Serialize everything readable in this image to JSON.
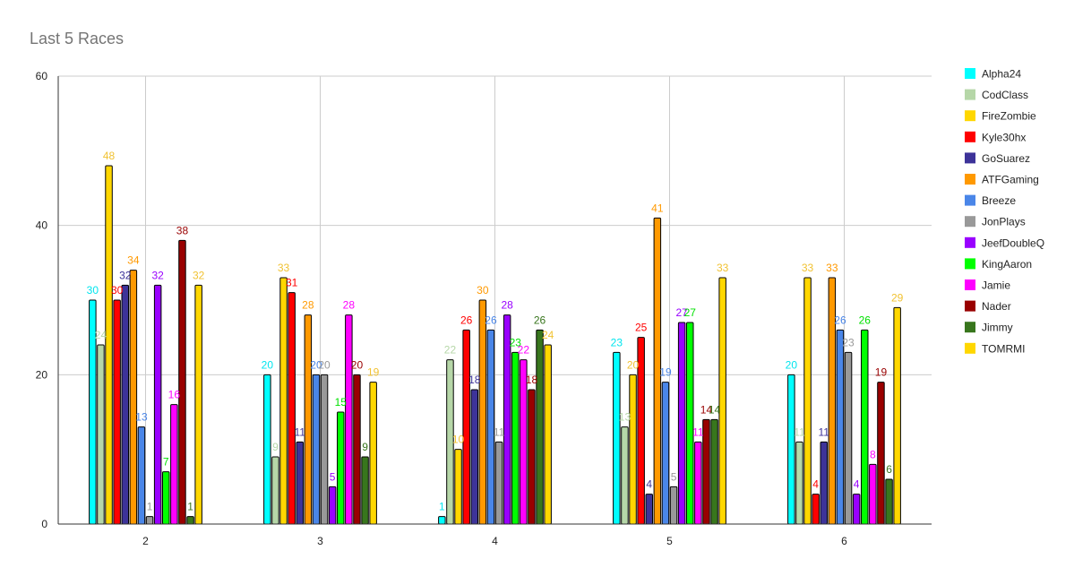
{
  "chart_data": {
    "type": "bar",
    "title": "Last 5 Races",
    "xlabel": "",
    "ylabel": "",
    "categories": [
      "2",
      "3",
      "4",
      "5",
      "6"
    ],
    "ylim": [
      0,
      60
    ],
    "yticks": [
      0,
      20,
      40,
      60
    ],
    "grid": true,
    "legend": "right",
    "series": [
      {
        "name": "Alpha24",
        "color": "#00FFFF",
        "label_color": "#00E5EE",
        "values": [
          30,
          20,
          1,
          23,
          20
        ]
      },
      {
        "name": "CodClass",
        "color": "#B6D7A8",
        "label_color": "#B6D7A8",
        "values": [
          24,
          9,
          22,
          13,
          11
        ]
      },
      {
        "name": "FireZombie",
        "color": "#FFD700",
        "label_color": "#F1C232",
        "values": [
          48,
          33,
          10,
          20,
          33
        ]
      },
      {
        "name": "Kyle30hx",
        "color": "#FF0000",
        "label_color": "#FF0000",
        "values": [
          30,
          31,
          26,
          25,
          4
        ]
      },
      {
        "name": "GoSuarez",
        "color": "#3D3399",
        "label_color": "#3D3399",
        "values": [
          32,
          11,
          18,
          4,
          11
        ]
      },
      {
        "name": "ATFGaming",
        "color": "#FF9900",
        "label_color": "#FF9900",
        "values": [
          34,
          28,
          30,
          41,
          33
        ]
      },
      {
        "name": "Breeze",
        "color": "#4A86E8",
        "label_color": "#4A86E8",
        "values": [
          13,
          20,
          26,
          19,
          26
        ]
      },
      {
        "name": "JonPlays",
        "color": "#999999",
        "label_color": "#999999",
        "values": [
          1,
          20,
          11,
          5,
          23
        ]
      },
      {
        "name": "JeefDoubleQ",
        "color": "#9900FF",
        "label_color": "#9900FF",
        "values": [
          32,
          5,
          28,
          27,
          4
        ]
      },
      {
        "name": "KingAaron",
        "color": "#00FF00",
        "label_color": "#00E000",
        "values": [
          7,
          15,
          23,
          27,
          26
        ]
      },
      {
        "name": "Jamie",
        "color": "#FF00FF",
        "label_color": "#FF00FF",
        "values": [
          16,
          28,
          22,
          11,
          8
        ]
      },
      {
        "name": "Nader",
        "color": "#990000",
        "label_color": "#990000",
        "values": [
          38,
          20,
          18,
          14,
          19
        ]
      },
      {
        "name": "Jimmy",
        "color": "#38761D",
        "label_color": "#38761D",
        "values": [
          1,
          9,
          26,
          14,
          6
        ]
      },
      {
        "name": "TOMRMI",
        "color": "#FFD700",
        "label_color": "#F1C232",
        "values": [
          32,
          19,
          24,
          33,
          29
        ]
      }
    ]
  }
}
